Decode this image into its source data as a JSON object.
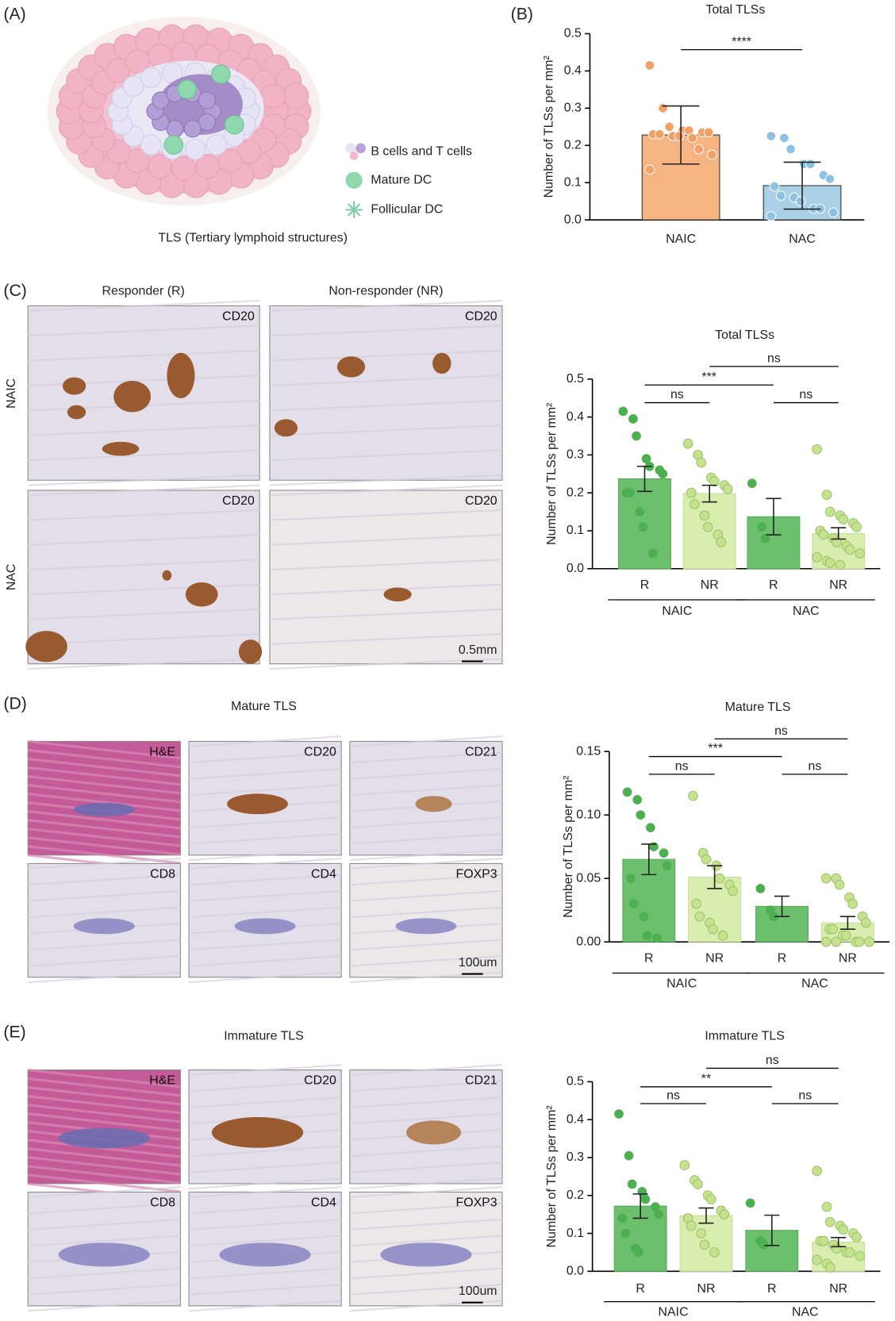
{
  "figure": {
    "panel_labels": [
      "(A)",
      "(B)",
      "(C)",
      "(D)",
      "(E)"
    ],
    "panel_a": {
      "legend": [
        "B cells and T cells",
        "Mature DC",
        "Follicular DC"
      ],
      "caption": "TLS (Tertiary lymphoid structures)"
    },
    "panel_c": {
      "columns": [
        "Responder (R)",
        "Non-responder (NR)"
      ],
      "rows": [
        "NAIC",
        "NAC"
      ],
      "stains": [
        "CD20",
        "CD20",
        "CD20",
        "CD20"
      ],
      "scale_bar": "0.5mm"
    },
    "panel_d": {
      "title": "Mature TLS",
      "stains": [
        "H&E",
        "CD20",
        "CD21",
        "CD8",
        "CD4",
        "FOXP3"
      ],
      "scale_bar": "100um"
    },
    "panel_e": {
      "title": "Immature TLS",
      "stains": [
        "H&E",
        "CD20",
        "CD21",
        "CD8",
        "CD4",
        "FOXP3"
      ],
      "scale_bar": "100um"
    }
  },
  "chart_data": [
    {
      "type": "bar",
      "title": "Total TLSs",
      "ylabel": "Number of TLSs per mm²",
      "categories": [
        "NAIC",
        "NAC"
      ],
      "values": [
        0.228,
        0.092
      ],
      "errors": [
        0.078,
        0.063
      ],
      "points": [
        [
          0.415,
          0.3,
          0.25,
          0.24,
          0.24,
          0.235,
          0.235,
          0.23,
          0.23,
          0.225,
          0.225,
          0.22,
          0.19,
          0.175,
          0.135
        ],
        [
          0.225,
          0.22,
          0.19,
          0.15,
          0.15,
          0.12,
          0.11,
          0.09,
          0.065,
          0.06,
          0.05,
          0.03,
          0.03,
          0.02,
          0.01
        ]
      ],
      "colors": [
        "#f7b483",
        "#a9d0e6"
      ],
      "point_colors": [
        "#f2a066",
        "#8ec2e2"
      ],
      "ylim": [
        0,
        0.5
      ],
      "yticks": [
        {
          "value": 0,
          "label": "0.0"
        },
        0.1,
        0.2,
        0.3,
        0.4,
        0.5
      ],
      "annotations": [
        "****"
      ]
    },
    {
      "type": "bar",
      "title": "Total TLSs",
      "ylabel": "Number of TLSs per mm²",
      "categories": [
        "R",
        "NR",
        "R",
        "NR"
      ],
      "groups": [
        "NAIC",
        "NAC"
      ],
      "values": [
        0.237,
        0.198,
        0.137,
        0.093
      ],
      "errors": [
        0.033,
        0.022,
        0.048,
        0.015
      ],
      "points": [
        [
          0.415,
          0.395,
          0.35,
          0.29,
          0.27,
          0.26,
          0.25,
          0.2,
          0.2,
          0.15,
          0.11,
          0.04
        ],
        [
          0.33,
          0.3,
          0.28,
          0.24,
          0.23,
          0.22,
          0.21,
          0.2,
          0.17,
          0.14,
          0.11,
          0.09,
          0.07
        ],
        [
          0.225,
          0.11,
          0.08
        ],
        [
          0.315,
          0.195,
          0.15,
          0.14,
          0.13,
          0.12,
          0.11,
          0.1,
          0.09,
          0.08,
          0.07,
          0.06,
          0.05,
          0.04,
          0.03,
          0.02,
          0.015,
          0.01
        ]
      ],
      "colors": [
        "#6cbf6c",
        "#d9edae",
        "#6cbf6c",
        "#d9edae"
      ],
      "point_colors": [
        "#4caf50",
        "#c6e28e",
        "#4caf50",
        "#c6e28e"
      ],
      "ylim": [
        0,
        0.5
      ],
      "yticks": [
        {
          "value": 0,
          "label": "0.0"
        },
        0.1,
        0.2,
        0.3,
        0.4,
        0.5
      ],
      "annotations": [
        "ns",
        "***",
        "ns",
        "ns"
      ]
    },
    {
      "type": "bar",
      "title": "Mature TLS",
      "ylabel": "Number of TLSs per mm²",
      "categories": [
        "R",
        "NR",
        "R",
        "NR"
      ],
      "groups": [
        "NAIC",
        "NAC"
      ],
      "values": [
        0.065,
        0.051,
        0.028,
        0.015
      ],
      "errors": [
        0.012,
        0.009,
        0.008,
        0.005
      ],
      "points": [
        [
          0.118,
          0.112,
          0.1,
          0.09,
          0.075,
          0.07,
          0.06,
          0.05,
          0.03,
          0.02,
          0.005,
          0.003
        ],
        [
          0.115,
          0.07,
          0.065,
          0.06,
          0.05,
          0.045,
          0.04,
          0.03,
          0.02,
          0.015,
          0.01,
          0.005
        ],
        [
          0.042,
          0.025,
          0.02
        ],
        [
          0.05,
          0.05,
          0.045,
          0.035,
          0.03,
          0.02,
          0.015,
          0.01,
          0.01,
          0.005,
          0.005,
          0,
          0,
          0,
          0,
          0
        ]
      ],
      "colors": [
        "#6cbf6c",
        "#d9edae",
        "#6cbf6c",
        "#d9edae"
      ],
      "point_colors": [
        "#4caf50",
        "#c6e28e",
        "#4caf50",
        "#c6e28e"
      ],
      "ylim": [
        0,
        0.15
      ],
      "yticks": [
        {
          "value": 0,
          "label": "0.00"
        },
        0.05,
        {
          "value": 0.1,
          "label": "0.10"
        },
        0.15
      ],
      "annotations": [
        "ns",
        "***",
        "ns",
        "ns"
      ]
    },
    {
      "type": "bar",
      "title": "Immature TLS",
      "ylabel": "Number of TLSs per mm²",
      "categories": [
        "R",
        "NR",
        "R",
        "NR"
      ],
      "groups": [
        "NAIC",
        "NAC"
      ],
      "values": [
        0.172,
        0.147,
        0.108,
        0.077
      ],
      "errors": [
        0.032,
        0.02,
        0.04,
        0.012
      ],
      "points": [
        [
          0.415,
          0.305,
          0.23,
          0.21,
          0.19,
          0.17,
          0.15,
          0.14,
          0.1,
          0.06,
          0.05
        ],
        [
          0.28,
          0.24,
          0.23,
          0.2,
          0.19,
          0.16,
          0.15,
          0.14,
          0.12,
          0.1,
          0.07,
          0.05
        ],
        [
          0.18,
          0.08,
          0.07
        ],
        [
          0.265,
          0.17,
          0.13,
          0.12,
          0.11,
          0.1,
          0.09,
          0.08,
          0.08,
          0.07,
          0.06,
          0.05,
          0.05,
          0.04,
          0.03,
          0.02,
          0.01
        ]
      ],
      "colors": [
        "#6cbf6c",
        "#d9edae",
        "#6cbf6c",
        "#d9edae"
      ],
      "point_colors": [
        "#4caf50",
        "#c6e28e",
        "#4caf50",
        "#c6e28e"
      ],
      "ylim": [
        0,
        0.5
      ],
      "yticks": [
        {
          "value": 0,
          "label": "0.0"
        },
        0.1,
        0.2,
        0.3,
        0.4,
        0.5
      ],
      "annotations": [
        "ns",
        "**",
        "ns",
        "ns"
      ]
    }
  ]
}
